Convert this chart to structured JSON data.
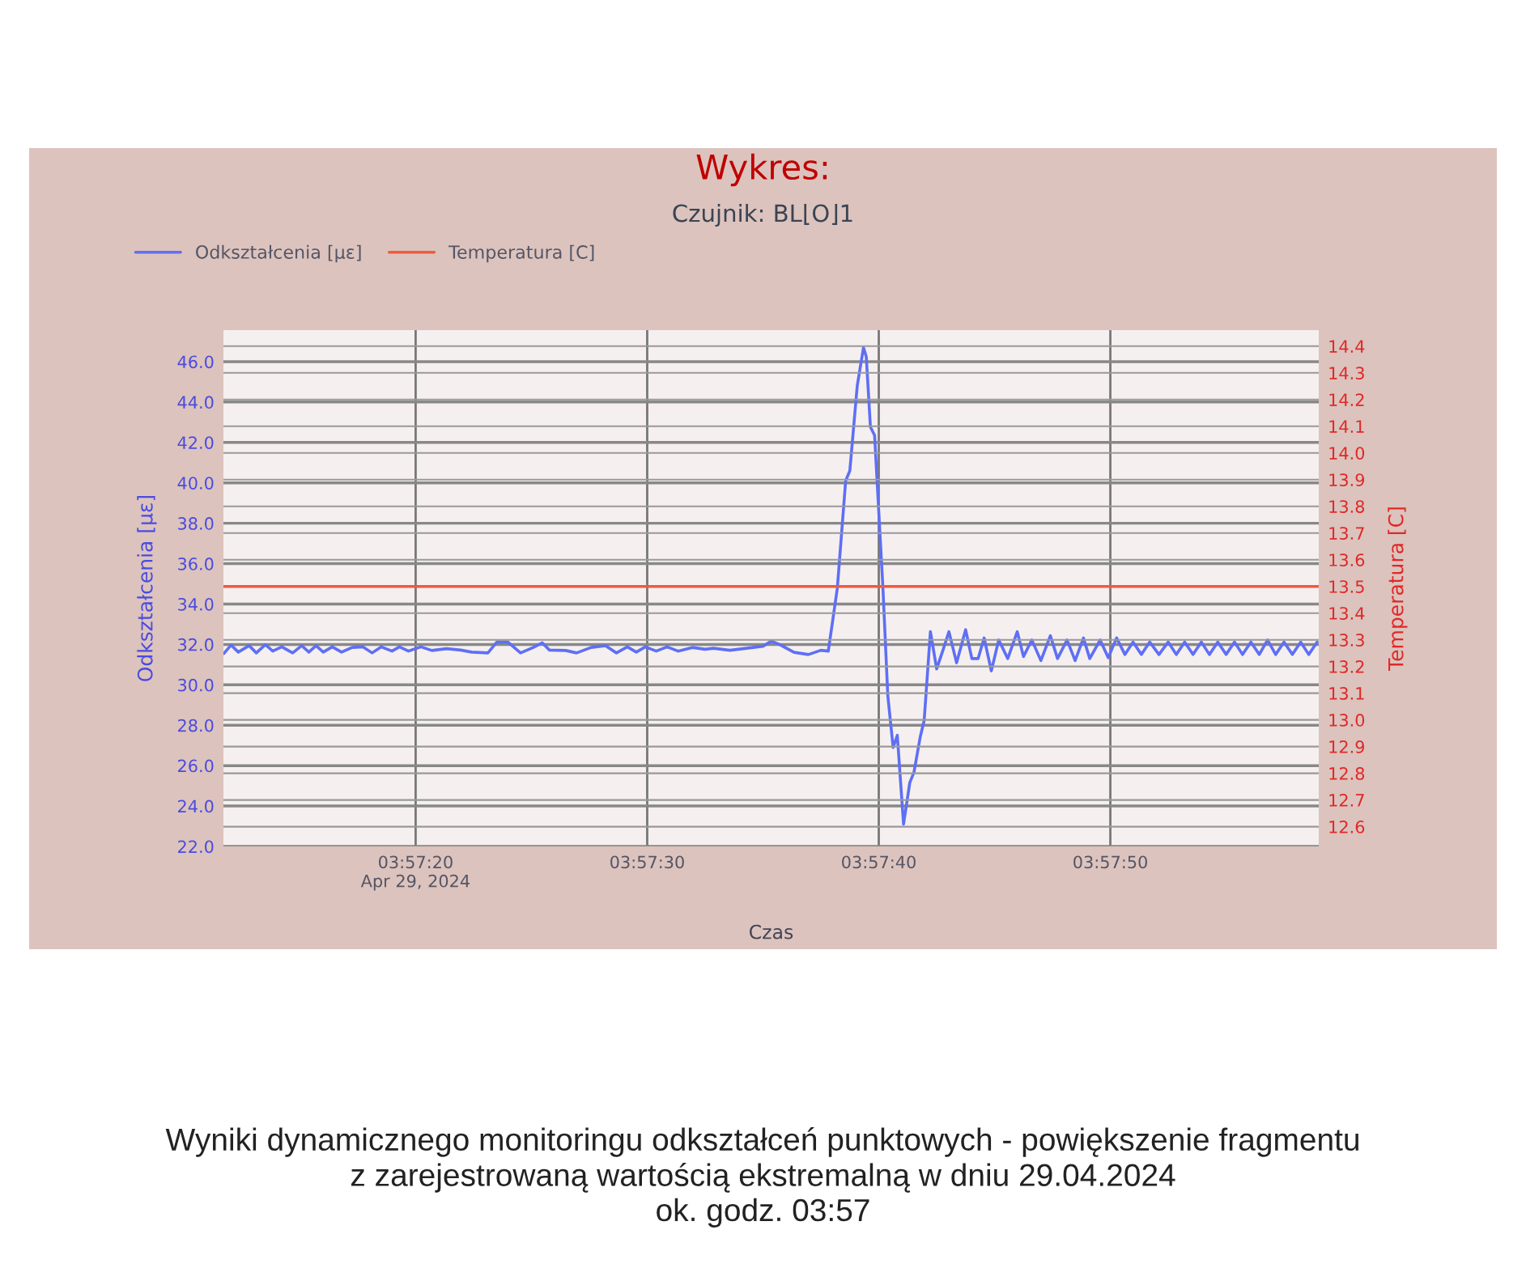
{
  "chart_data": {
    "type": "line",
    "title": "Wykres:",
    "subtitle": "Czujnik: BL⌊O⌋1",
    "xlabel": "Czas",
    "ylabel": "Odkształcenia [με]",
    "y2label": "Temperatura [C]",
    "annotations": [
      "Wyniki dynamicznego monitoringu odkształceń punktowych - powiększenie fragmentu\nz zarejestrowaną wartością ekstremalną w dniu 29.04.2024\nok. godz. 03:57"
    ],
    "xlim": [
      "2024-04-29T03:57:11.7",
      "2024-04-29T03:57:59.0"
    ],
    "xticks": [
      {
        "value": "2024-04-29T03:57:20",
        "label": "03:57:20\nApr 29, 2024"
      },
      {
        "value": "2024-04-29T03:57:30",
        "label": "03:57:30"
      },
      {
        "value": "2024-04-29T03:57:40",
        "label": "03:57:40"
      },
      {
        "value": "2024-04-29T03:57:50",
        "label": "03:57:50"
      }
    ],
    "ylim": [
      22,
      47.56
    ],
    "yticks": [
      {
        "value": 22,
        "label": "22.0"
      },
      {
        "value": 24,
        "label": "24.0"
      },
      {
        "value": 26,
        "label": "26.0"
      },
      {
        "value": 28,
        "label": "28.0"
      },
      {
        "value": 30,
        "label": "30.0"
      },
      {
        "value": 32,
        "label": "32.0"
      },
      {
        "value": 34,
        "label": "34.0"
      },
      {
        "value": 36,
        "label": "36.0"
      },
      {
        "value": 38,
        "label": "38.0"
      },
      {
        "value": 40,
        "label": "40.0"
      },
      {
        "value": 42,
        "label": "42.0"
      },
      {
        "value": 44,
        "label": "44.0"
      },
      {
        "value": 46,
        "label": "46.0"
      }
    ],
    "y2lim": [
      12.526,
      14.46
    ],
    "y2ticks": [
      12.6,
      12.7,
      12.8,
      12.9,
      {
        "value": 13,
        "label": "13.0"
      },
      13.1,
      13.2,
      13.3,
      13.4,
      13.5,
      13.6,
      13.7,
      13.8,
      13.9,
      {
        "value": 14,
        "label": "14.0"
      },
      14.1,
      14.2,
      14.3,
      14.4
    ],
    "grid": true,
    "legend": "top left",
    "series": [
      {
        "name": "Odkształcenia [με]",
        "color": "#5f6ff5",
        "x": [
          "2024-04-29T03:57:11.72",
          "2024-04-29T03:57:12.03",
          "2024-04-29T03:57:12.34",
          "2024-04-29T03:57:12.81",
          "2024-04-29T03:57:13.12",
          "2024-04-29T03:57:13.51",
          "2024-04-29T03:57:13.83",
          "2024-04-29T03:57:14.22",
          "2024-04-29T03:57:14.69",
          "2024-04-29T03:57:15.08",
          "2024-04-29T03:57:15.39",
          "2024-04-29T03:57:15.70",
          "2024-04-29T03:57:16.01",
          "2024-04-29T03:57:16.40",
          "2024-04-29T03:57:16.80",
          "2024-04-29T03:57:17.26",
          "2024-04-29T03:57:17.73",
          "2024-04-29T03:57:18.12",
          "2024-04-29T03:57:18.51",
          "2024-04-29T03:57:18.98",
          "2024-04-29T03:57:19.30",
          "2024-04-29T03:57:19.69",
          "2024-04-29T03:57:20.23",
          "2024-04-29T03:57:20.70",
          "2024-04-29T03:57:21.33",
          "2024-04-29T03:57:21.95",
          "2024-04-29T03:57:22.42",
          "2024-04-29T03:57:23.12",
          "2024-04-29T03:57:23.51",
          "2024-04-29T03:57:23.98",
          "2024-04-29T03:57:24.53",
          "2024-04-29T03:57:25.08",
          "2024-04-29T03:57:25.47",
          "2024-04-29T03:57:25.78",
          "2024-04-29T03:57:26.48",
          "2024-04-29T03:57:26.95",
          "2024-04-29T03:57:27.58",
          "2024-04-29T03:57:28.20",
          "2024-04-29T03:57:28.67",
          "2024-04-29T03:57:29.14",
          "2024-04-29T03:57:29.53",
          "2024-04-29T03:57:29.92",
          "2024-04-29T03:57:30.39",
          "2024-04-29T03:57:30.86",
          "2024-04-29T03:57:31.33",
          "2024-04-29T03:57:31.95",
          "2024-04-29T03:57:32.50",
          "2024-04-29T03:57:32.86",
          "2024-04-29T03:57:33.57",
          "2024-04-29T03:57:34.29",
          "2024-04-29T03:57:35.00",
          "2024-04-29T03:57:35.36",
          "2024-04-29T03:57:35.71",
          "2024-04-29T03:57:36.34",
          "2024-04-29T03:57:36.96",
          "2024-04-29T03:57:37.50",
          "2024-04-29T03:57:37.82",
          "2024-04-29T03:57:38.21",
          "2024-04-29T03:57:38.57",
          "2024-04-29T03:57:38.75",
          "2024-04-29T03:57:39.07",
          "2024-04-29T03:57:39.34",
          "2024-04-29T03:57:39.46",
          "2024-04-29T03:57:39.64",
          "2024-04-29T03:57:39.82",
          "2024-04-29T03:57:40.18",
          "2024-04-29T03:57:40.39",
          "2024-04-29T03:57:40.62",
          "2024-04-29T03:57:40.80",
          "2024-04-29T03:57:41.07",
          "2024-04-29T03:57:41.34",
          "2024-04-29T03:57:41.52",
          "2024-04-29T03:57:41.79",
          "2024-04-29T03:57:41.96",
          "2024-04-29T03:57:42.23",
          "2024-04-29T03:57:42.50",
          "2024-04-29T03:57:42.77",
          "2024-04-29T03:57:43.03",
          "2024-04-29T03:57:43.36",
          "2024-04-29T03:57:43.75",
          "2024-04-29T03:57:44.02",
          "2024-04-29T03:57:44.29",
          "2024-04-29T03:57:44.55",
          "2024-04-29T03:57:44.86",
          "2024-04-29T03:57:45.18",
          "2024-04-29T03:57:45.57",
          "2024-04-29T03:57:45.98",
          "2024-04-29T03:57:46.25",
          "2024-04-29T03:57:46.61",
          "2024-04-29T03:57:47.00",
          "2024-04-29T03:57:47.41",
          "2024-04-29T03:57:47.72",
          "2024-04-29T03:57:48.13",
          "2024-04-29T03:57:48.48",
          "2024-04-29T03:57:48.84",
          "2024-04-29T03:57:49.11",
          "2024-04-29T03:57:49.56",
          "2024-04-29T03:57:49.91",
          "2024-04-29T03:57:50.27",
          "2024-04-29T03:57:50.63",
          "2024-04-29T03:57:50.98",
          "2024-04-29T03:57:51.34",
          "2024-04-29T03:57:51.70",
          "2024-04-29T03:57:52.10",
          "2024-04-29T03:57:52.50",
          "2024-04-29T03:57:52.85",
          "2024-04-29T03:57:53.21",
          "2024-04-29T03:57:53.57",
          "2024-04-29T03:57:53.93",
          "2024-04-29T03:57:54.28",
          "2024-04-29T03:57:54.64",
          "2024-04-29T03:57:55.00",
          "2024-04-29T03:57:55.36",
          "2024-04-29T03:57:55.71",
          "2024-04-29T03:57:56.07",
          "2024-04-29T03:57:56.43",
          "2024-04-29T03:57:56.79",
          "2024-04-29T03:57:57.14",
          "2024-04-29T03:57:57.50",
          "2024-04-29T03:57:57.86",
          "2024-04-29T03:57:58.22",
          "2024-04-29T03:57:58.57",
          "2024-04-29T03:57:58.93"
        ],
        "values": [
          31.55,
          31.97,
          31.62,
          31.94,
          31.58,
          31.99,
          31.67,
          31.88,
          31.58,
          31.94,
          31.62,
          31.94,
          31.62,
          31.88,
          31.62,
          31.85,
          31.88,
          31.58,
          31.88,
          31.67,
          31.88,
          31.67,
          31.88,
          31.7,
          31.79,
          31.72,
          31.62,
          31.58,
          32.12,
          32.12,
          31.58,
          31.85,
          32.08,
          31.72,
          31.7,
          31.58,
          31.85,
          31.94,
          31.58,
          31.88,
          31.62,
          31.88,
          31.67,
          31.88,
          31.67,
          31.85,
          31.76,
          31.81,
          31.71,
          31.81,
          31.91,
          32.16,
          32.0,
          31.61,
          31.5,
          31.71,
          31.67,
          34.78,
          40.1,
          40.6,
          44.8,
          46.7,
          46.25,
          42.76,
          42.35,
          34.78,
          29.46,
          26.9,
          27.5,
          23.1,
          25.16,
          25.67,
          27.42,
          28.23,
          32.63,
          30.79,
          31.71,
          32.63,
          31.09,
          32.73,
          31.3,
          31.3,
          32.32,
          30.69,
          32.22,
          31.3,
          32.63,
          31.4,
          32.22,
          31.2,
          32.43,
          31.3,
          32.22,
          31.2,
          32.32,
          31.3,
          32.22,
          31.34,
          32.32,
          31.5,
          32.12,
          31.5,
          32.12,
          31.5,
          32.12,
          31.5,
          32.12,
          31.5,
          32.12,
          31.5,
          32.12,
          31.5,
          32.12,
          31.5,
          32.12,
          31.5,
          32.22,
          31.5,
          32.12,
          31.5,
          32.12,
          31.5,
          32.12
        ]
      },
      {
        "name": "Temperatura [C]",
        "color": "#f05a40",
        "axis": "y2",
        "x": [
          "2024-04-29T03:57:11.7",
          "2024-04-29T03:57:59.0"
        ],
        "values": [
          13.5,
          13.5
        ]
      }
    ]
  }
}
